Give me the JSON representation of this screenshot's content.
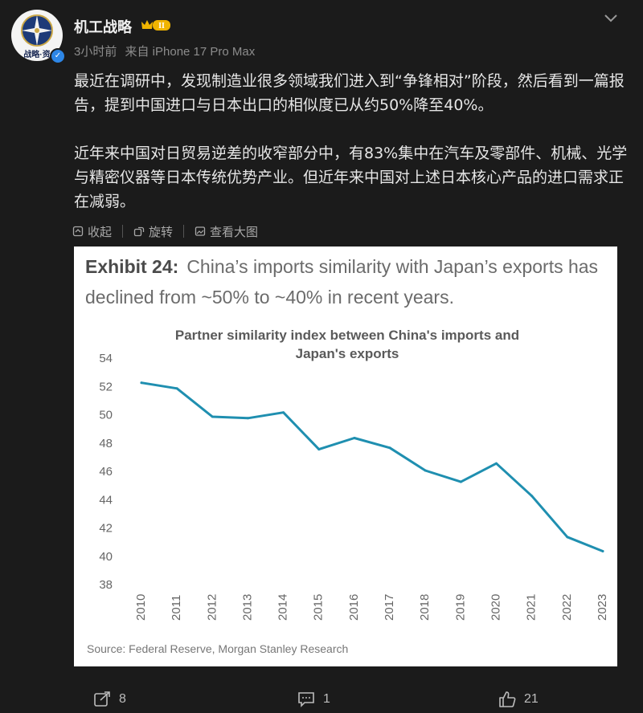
{
  "author": {
    "name": "机工战略",
    "avatar_caption": "战略·资",
    "badge_level": "II"
  },
  "meta": {
    "time": "3小时前",
    "source": "来自 iPhone 17 Pro Max"
  },
  "post": {
    "paragraphs": [
      "最近在调研中，发现制造业很多领域我们进入到“争锋相对”阶段，然后看到一篇报告，提到中国进口与日本出口的相似度已从约50%降至40%。",
      "近年来中国对日贸易逆差的收窄部分中，有83%集中在汽车及零部件、机械、光学与精密仪器等日本传统优势产业。但近年来中国对上述日本核心产品的进口需求正在减弱。"
    ]
  },
  "toolbar": {
    "collapse": "收起",
    "rotate": "旋转",
    "view_large": "查看大图"
  },
  "image": {
    "exhibit_label": "Exhibit 24:",
    "exhibit_line1": "China’s imports similarity with Japan’s exports has",
    "exhibit_line2": "declined from ~50% to ~40% in recent years.",
    "source": "Source: Federal Reserve, Morgan Stanley Research"
  },
  "chart_data": {
    "type": "line",
    "title": "Partner similarity index between China's imports and Japan's exports",
    "title_lines": [
      "Partner similarity index between China's imports and",
      "Japan's exports"
    ],
    "x": [
      "2010",
      "2011",
      "2012",
      "2013",
      "2014",
      "2015",
      "2016",
      "2017",
      "2018",
      "2019",
      "2020",
      "2021",
      "2022",
      "2023"
    ],
    "series": [
      {
        "values": [
          52.2,
          51.8,
          49.8,
          49.7,
          50.1,
          47.5,
          48.3,
          47.6,
          46.0,
          45.2,
          46.5,
          44.2,
          41.3,
          40.3
        ],
        "color": "#1f8fb0"
      }
    ],
    "ylim": [
      38,
      54
    ],
    "yticks": [
      38,
      40,
      42,
      44,
      46,
      48,
      50,
      52,
      54
    ],
    "grid": false,
    "legend": "none"
  },
  "actions": {
    "reposts": "8",
    "comments": "1",
    "likes": "21"
  },
  "colors": {
    "background": "#1b1b1b",
    "line": "#1f8fb0",
    "badge": "#2d86e6"
  }
}
